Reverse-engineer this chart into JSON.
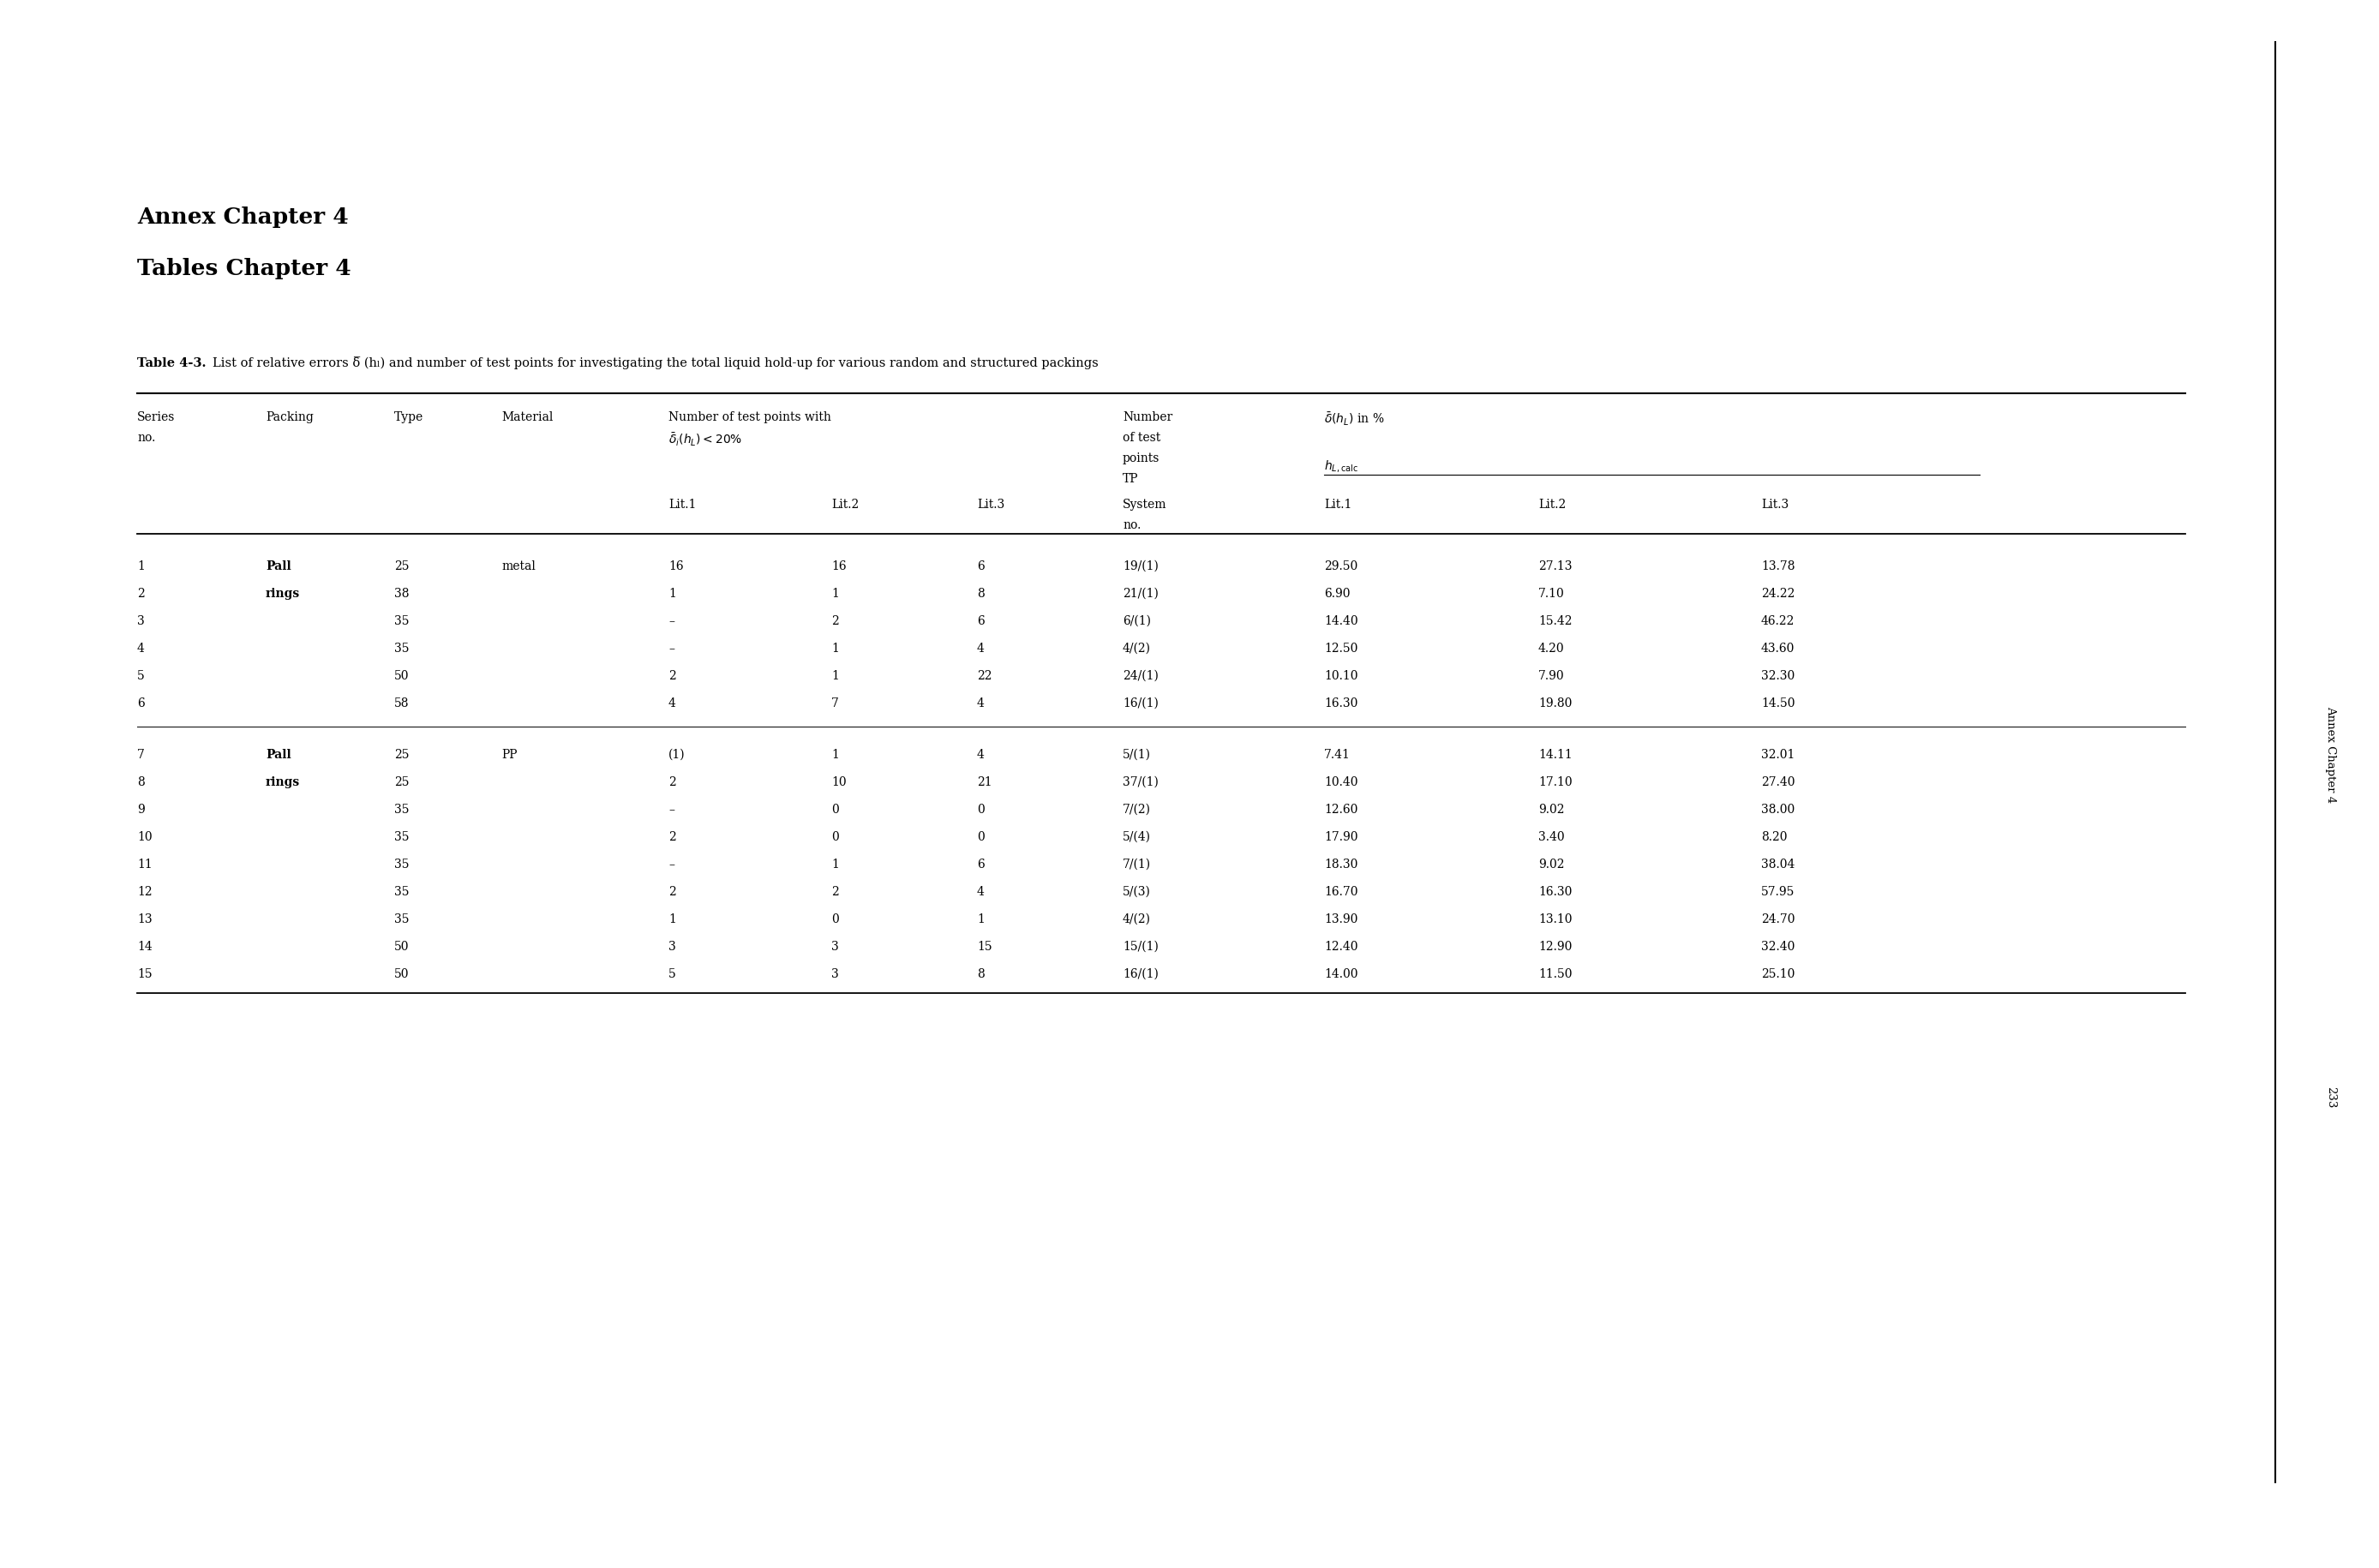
{
  "title1": "Annex Chapter 4",
  "title2": "Tables Chapter 4",
  "table_caption_bold": "Table 4-3.",
  "table_caption_rest": "List of relative errors δ̅ (hₗ) and number of test points for investigating the total liquid hold‑up for various random and structured packings",
  "rows": [
    [
      "1",
      "Pall",
      "25",
      "metal",
      "16",
      "16",
      "6",
      "19/(1)",
      "29.50",
      "27.13",
      "13.78"
    ],
    [
      "2",
      "rings",
      "38",
      "",
      "1",
      "1",
      "8",
      "21/(1)",
      "6.90",
      "7.10",
      "24.22"
    ],
    [
      "3",
      "",
      "35",
      "",
      "–",
      "2",
      "6",
      "6/(1)",
      "14.40",
      "15.42",
      "46.22"
    ],
    [
      "4",
      "",
      "35",
      "",
      "–",
      "1",
      "4",
      "4/(2)",
      "12.50",
      "4.20",
      "43.60"
    ],
    [
      "5",
      "",
      "50",
      "",
      "2",
      "1",
      "22",
      "24/(1)",
      "10.10",
      "7.90",
      "32.30"
    ],
    [
      "6",
      "",
      "58",
      "",
      "4",
      "7",
      "4",
      "16/(1)",
      "16.30",
      "19.80",
      "14.50"
    ],
    [
      "7",
      "Pall",
      "25",
      "PP",
      "(1)",
      "1",
      "4",
      "5/(1)",
      "7.41",
      "14.11",
      "32.01"
    ],
    [
      "8",
      "rings",
      "25",
      "",
      "2",
      "10",
      "21",
      "37/(1)",
      "10.40",
      "17.10",
      "27.40"
    ],
    [
      "9",
      "",
      "35",
      "",
      "–",
      "0",
      "0",
      "7/(2)",
      "12.60",
      "9.02",
      "38.00"
    ],
    [
      "10",
      "",
      "35",
      "",
      "2",
      "0",
      "0",
      "5/(4)",
      "17.90",
      "3.40",
      "8.20"
    ],
    [
      "11",
      "",
      "35",
      "",
      "–",
      "1",
      "6",
      "7/(1)",
      "18.30",
      "9.02",
      "38.04"
    ],
    [
      "12",
      "",
      "35",
      "",
      "2",
      "2",
      "4",
      "5/(3)",
      "16.70",
      "16.30",
      "57.95"
    ],
    [
      "13",
      "",
      "35",
      "",
      "1",
      "0",
      "1",
      "4/(2)",
      "13.90",
      "13.10",
      "24.70"
    ],
    [
      "14",
      "",
      "50",
      "",
      "3",
      "3",
      "15",
      "15/(1)",
      "12.40",
      "12.90",
      "32.40"
    ],
    [
      "15",
      "",
      "50",
      "",
      "5",
      "3",
      "8",
      "16/(1)",
      "14.00",
      "11.50",
      "25.10"
    ]
  ],
  "packing_bold_rows": [
    0,
    1,
    6,
    7
  ],
  "bg_color": "#ffffff",
  "text_color": "#000000",
  "fig_width": 27.76,
  "fig_height": 18.31
}
